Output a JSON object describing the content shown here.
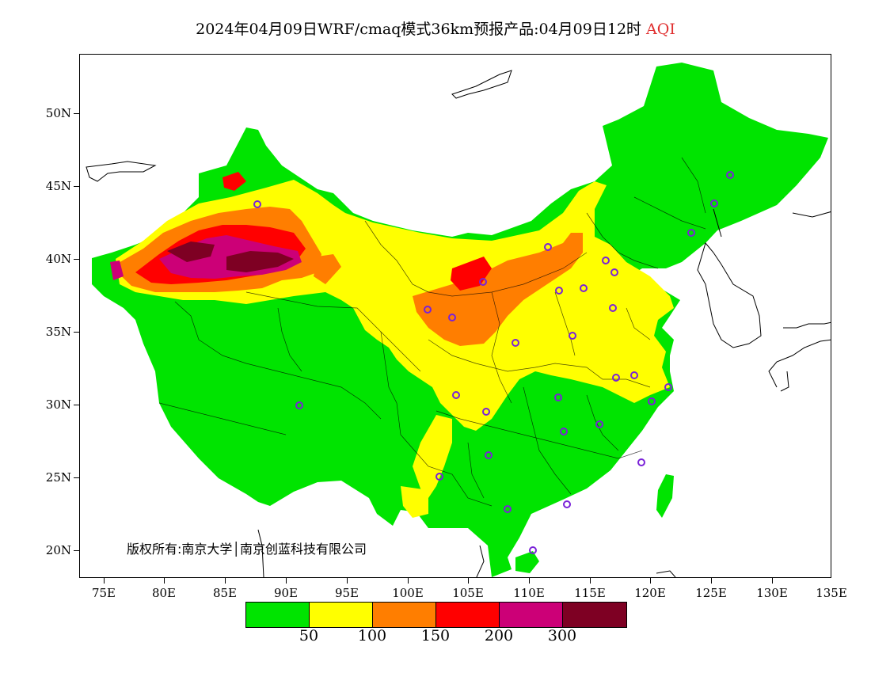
{
  "title": {
    "main": "2024年04月09日WRF/cmaq模式36km预报产品:04月09日12时",
    "variable": "AQI",
    "variable_color": "#e03030"
  },
  "map": {
    "lat_labels": [
      "50N",
      "45N",
      "40N",
      "35N",
      "30N",
      "25N",
      "20N"
    ],
    "lon_labels": [
      "75E",
      "80E",
      "85E",
      "90E",
      "95E",
      "100E",
      "105E",
      "110E",
      "115E",
      "120E",
      "125E",
      "130E",
      "135E"
    ],
    "copyright": "版权所有:南京大学│南京创蓝科技有限公司",
    "station_marker_color": "#7a22d8",
    "aqi_levels": [
      {
        "name": "good",
        "color": "#00e400"
      },
      {
        "name": "moderate",
        "color": "#ffff00"
      },
      {
        "name": "unhealthy-sensitive",
        "color": "#ff7e00"
      },
      {
        "name": "unhealthy",
        "color": "#ff0000"
      },
      {
        "name": "very-unhealthy",
        "color": "#cc0077"
      },
      {
        "name": "hazardous",
        "color": "#7e0023"
      }
    ]
  },
  "legend": {
    "colors": [
      "#00e400",
      "#ffff00",
      "#ff7e00",
      "#ff0000",
      "#cc0077",
      "#7e0023"
    ],
    "labels": [
      "50",
      "100",
      "150",
      "200",
      "300"
    ]
  }
}
